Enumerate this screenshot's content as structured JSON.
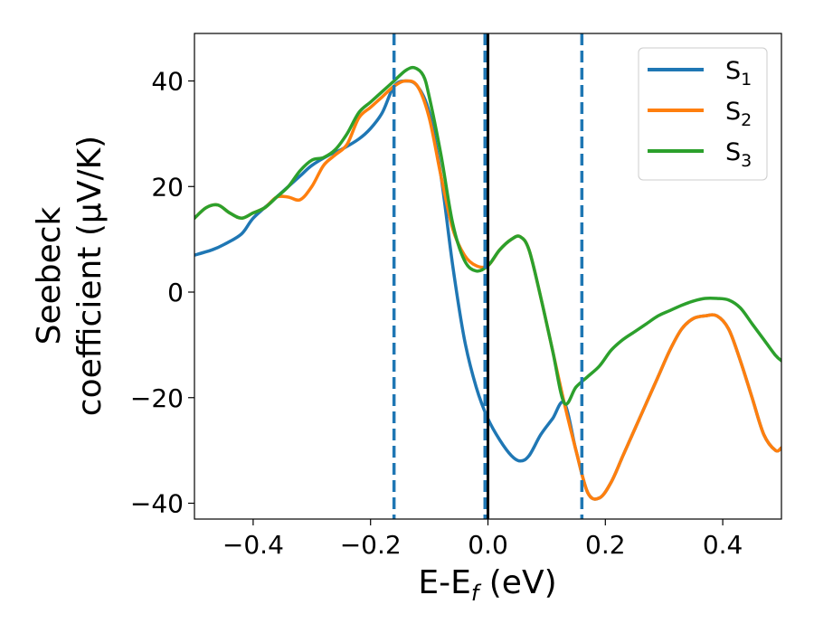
{
  "chart_data": {
    "type": "line",
    "xlabel": "E-E",
    "xlabel_sub": "f",
    "xlabel_unit": " (eV)",
    "ylabel_line1": "Seebeck",
    "ylabel_line2": "coefficient  (μV/K)",
    "xlim": [
      -0.5,
      0.5
    ],
    "ylim": [
      -43,
      49
    ],
    "x_ticks": [
      -0.4,
      -0.2,
      0.0,
      0.2,
      0.4
    ],
    "x_tick_labels": [
      "−0.4",
      "−0.2",
      "0.0",
      "0.2",
      "0.4"
    ],
    "y_ticks": [
      -40,
      -20,
      0,
      20,
      40
    ],
    "y_tick_labels": [
      "−40",
      "−20",
      "0",
      "20",
      "40"
    ],
    "grid": false,
    "legend_position": "top-right",
    "vlines": [
      {
        "x": -0.16,
        "style": "dashed",
        "color": "#1f77b4"
      },
      {
        "x": -0.005,
        "style": "dashed",
        "color": "#1f77b4"
      },
      {
        "x": 0.0,
        "style": "solid",
        "color": "#000000"
      },
      {
        "x": 0.16,
        "style": "dashed",
        "color": "#1f77b4"
      }
    ],
    "series": [
      {
        "name": "S",
        "sub": "1",
        "color": "#1f77b4",
        "x": [
          -0.5,
          -0.47,
          -0.45,
          -0.42,
          -0.4,
          -0.37,
          -0.35,
          -0.32,
          -0.3,
          -0.27,
          -0.25,
          -0.22,
          -0.2,
          -0.18,
          -0.16,
          -0.14,
          -0.12,
          -0.1,
          -0.08,
          -0.06,
          -0.04,
          -0.02,
          0.0,
          0.02,
          0.04,
          0.055,
          0.07,
          0.09,
          0.11,
          0.13,
          0.15,
          0.17,
          0.19,
          0.21,
          0.23,
          0.25,
          0.27,
          0.29,
          0.31,
          0.33,
          0.35,
          0.37,
          0.39,
          0.41,
          0.43,
          0.45,
          0.47,
          0.49,
          0.5
        ],
        "y": [
          7,
          8,
          9,
          11,
          14,
          17,
          19,
          22,
          24,
          26,
          27,
          29,
          31,
          34,
          39,
          40,
          39,
          34,
          22,
          5,
          -9,
          -18,
          -24,
          -28,
          -31,
          -32,
          -31,
          -27,
          -24,
          -21,
          -30,
          -38,
          -39,
          -36,
          -31,
          -26,
          -21,
          -16,
          -11,
          -7,
          -5,
          -4.5,
          -4.5,
          -7,
          -13,
          -20,
          -27,
          -30,
          -29.5
        ]
      },
      {
        "name": "S",
        "sub": "2",
        "color": "#ff7f0e",
        "x": [
          -0.5,
          -0.48,
          -0.46,
          -0.44,
          -0.42,
          -0.4,
          -0.38,
          -0.36,
          -0.34,
          -0.32,
          -0.3,
          -0.28,
          -0.26,
          -0.24,
          -0.22,
          -0.2,
          -0.18,
          -0.16,
          -0.14,
          -0.12,
          -0.1,
          -0.08,
          -0.06,
          -0.04,
          -0.02,
          0.0,
          0.02,
          0.04,
          0.055,
          0.07,
          0.09,
          0.11,
          0.13,
          0.15,
          0.17,
          0.19,
          0.21,
          0.23,
          0.25,
          0.27,
          0.29,
          0.31,
          0.33,
          0.35,
          0.37,
          0.39,
          0.41,
          0.43,
          0.45,
          0.47,
          0.49,
          0.5
        ],
        "y": [
          14,
          16,
          16.5,
          15,
          14,
          15,
          16,
          18,
          18,
          17.5,
          20,
          24,
          26,
          28,
          33,
          35,
          37,
          39,
          40,
          39,
          33,
          22,
          12,
          7,
          5,
          5,
          8,
          10,
          10.5,
          8,
          -1,
          -11,
          -21,
          -30,
          -38,
          -39,
          -36,
          -31,
          -26,
          -21,
          -16,
          -11,
          -7,
          -5,
          -4.5,
          -4.5,
          -7,
          -13,
          -20,
          -27,
          -30,
          -29.5
        ]
      },
      {
        "name": "S",
        "sub": "3",
        "color": "#2ca02c",
        "x": [
          -0.5,
          -0.48,
          -0.46,
          -0.44,
          -0.42,
          -0.4,
          -0.38,
          -0.36,
          -0.34,
          -0.32,
          -0.3,
          -0.28,
          -0.26,
          -0.24,
          -0.22,
          -0.2,
          -0.18,
          -0.16,
          -0.14,
          -0.125,
          -0.11,
          -0.1,
          -0.08,
          -0.06,
          -0.04,
          -0.02,
          0.0,
          0.02,
          0.04,
          0.055,
          0.07,
          0.09,
          0.11,
          0.13,
          0.15,
          0.17,
          0.19,
          0.21,
          0.23,
          0.25,
          0.27,
          0.29,
          0.31,
          0.33,
          0.35,
          0.37,
          0.39,
          0.41,
          0.43,
          0.45,
          0.47,
          0.49,
          0.5
        ],
        "y": [
          14,
          16,
          16.5,
          15,
          14,
          15,
          16,
          18,
          20,
          23,
          25,
          25.5,
          27,
          30,
          34,
          36,
          38,
          40,
          42,
          42.5,
          41,
          37,
          26,
          13,
          6,
          4,
          5,
          8,
          10,
          10.5,
          8,
          -1,
          -11,
          -21,
          -18,
          -16,
          -14,
          -11,
          -9,
          -7.5,
          -6,
          -4.5,
          -3.5,
          -2.5,
          -1.7,
          -1.2,
          -1.2,
          -1.5,
          -3,
          -6,
          -9,
          -12,
          -13
        ]
      }
    ]
  }
}
